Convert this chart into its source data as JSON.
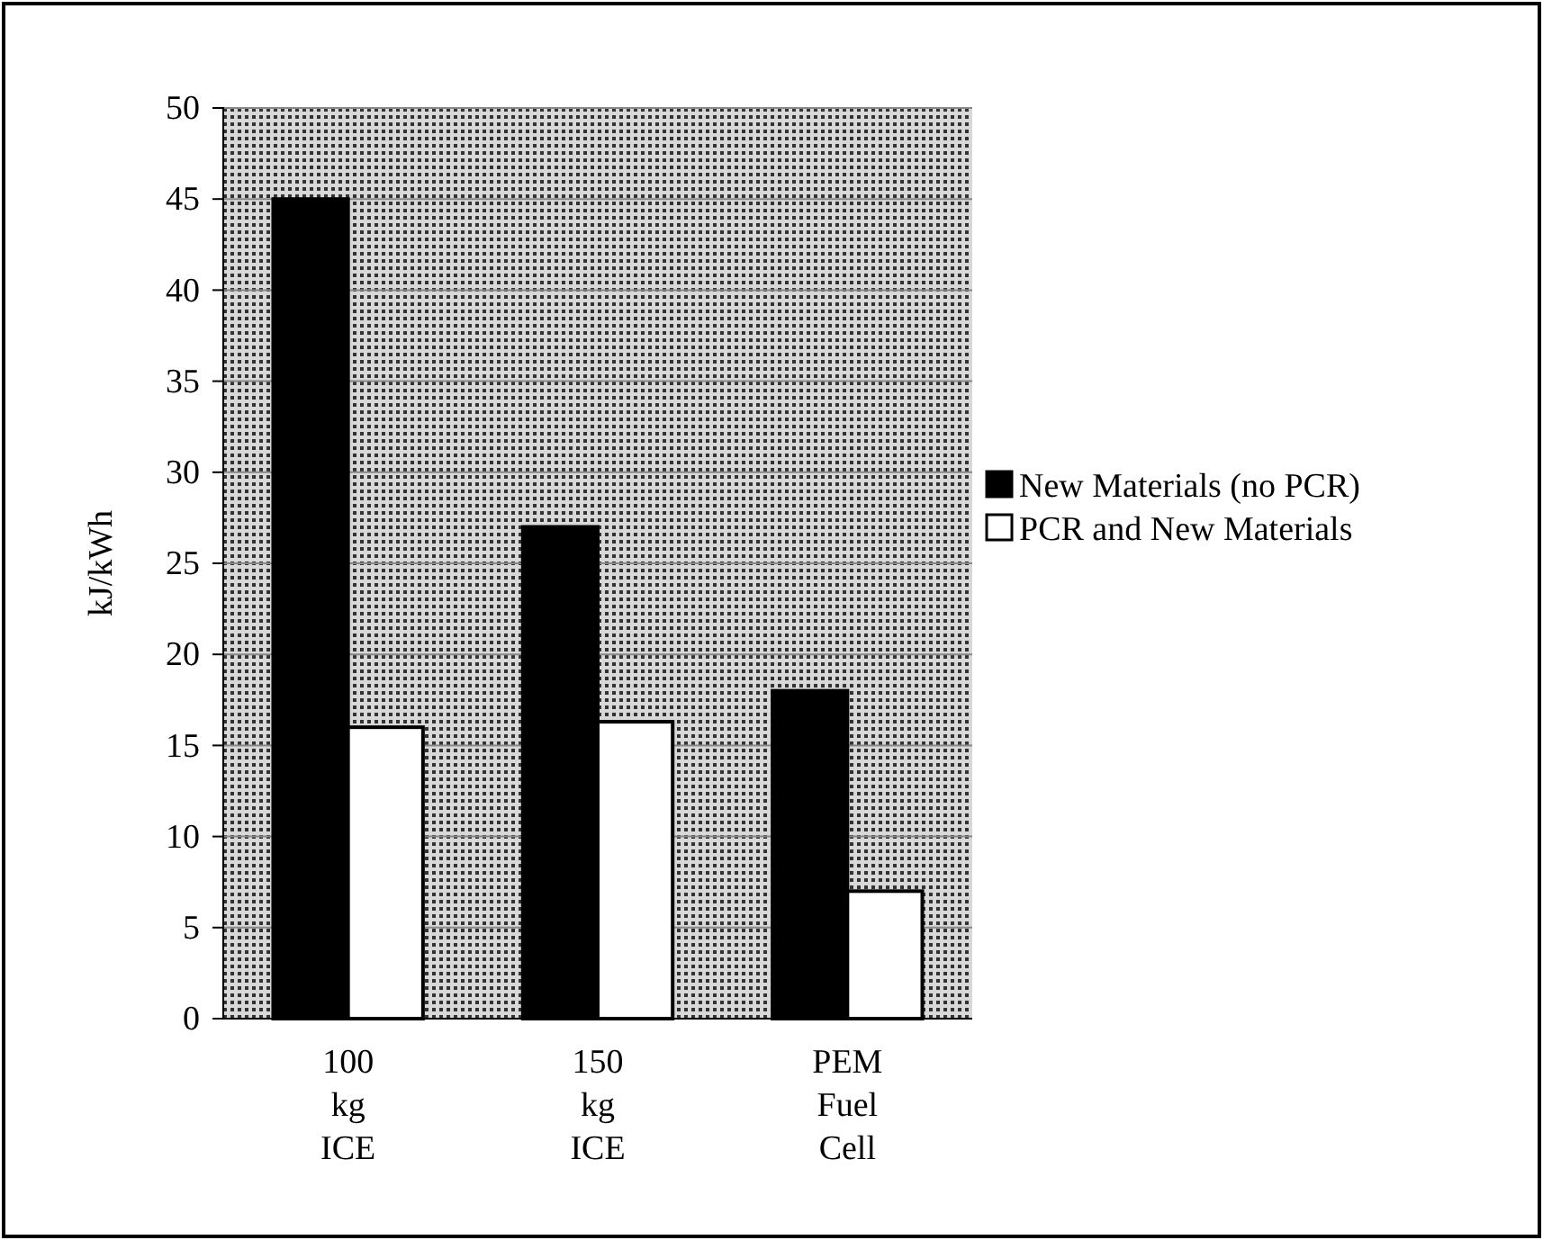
{
  "chart_data": {
    "type": "bar",
    "ylabel": "kJ/kWh",
    "categories": [
      "100\nkg\nICE",
      "150\nkg\nICE",
      "PEM\nFuel\nCell"
    ],
    "series": [
      {
        "name": "New Materials (no PCR)",
        "color": "#000000",
        "values": [
          45,
          27,
          18
        ]
      },
      {
        "name": "PCR and New Materials",
        "color": "#ffffff",
        "values": [
          16,
          16.3,
          7
        ]
      }
    ],
    "ylim": [
      0,
      50
    ],
    "yticks": [
      0,
      5,
      10,
      15,
      20,
      25,
      30,
      35,
      40,
      45,
      50
    ],
    "grid": "y",
    "legend": "right"
  }
}
